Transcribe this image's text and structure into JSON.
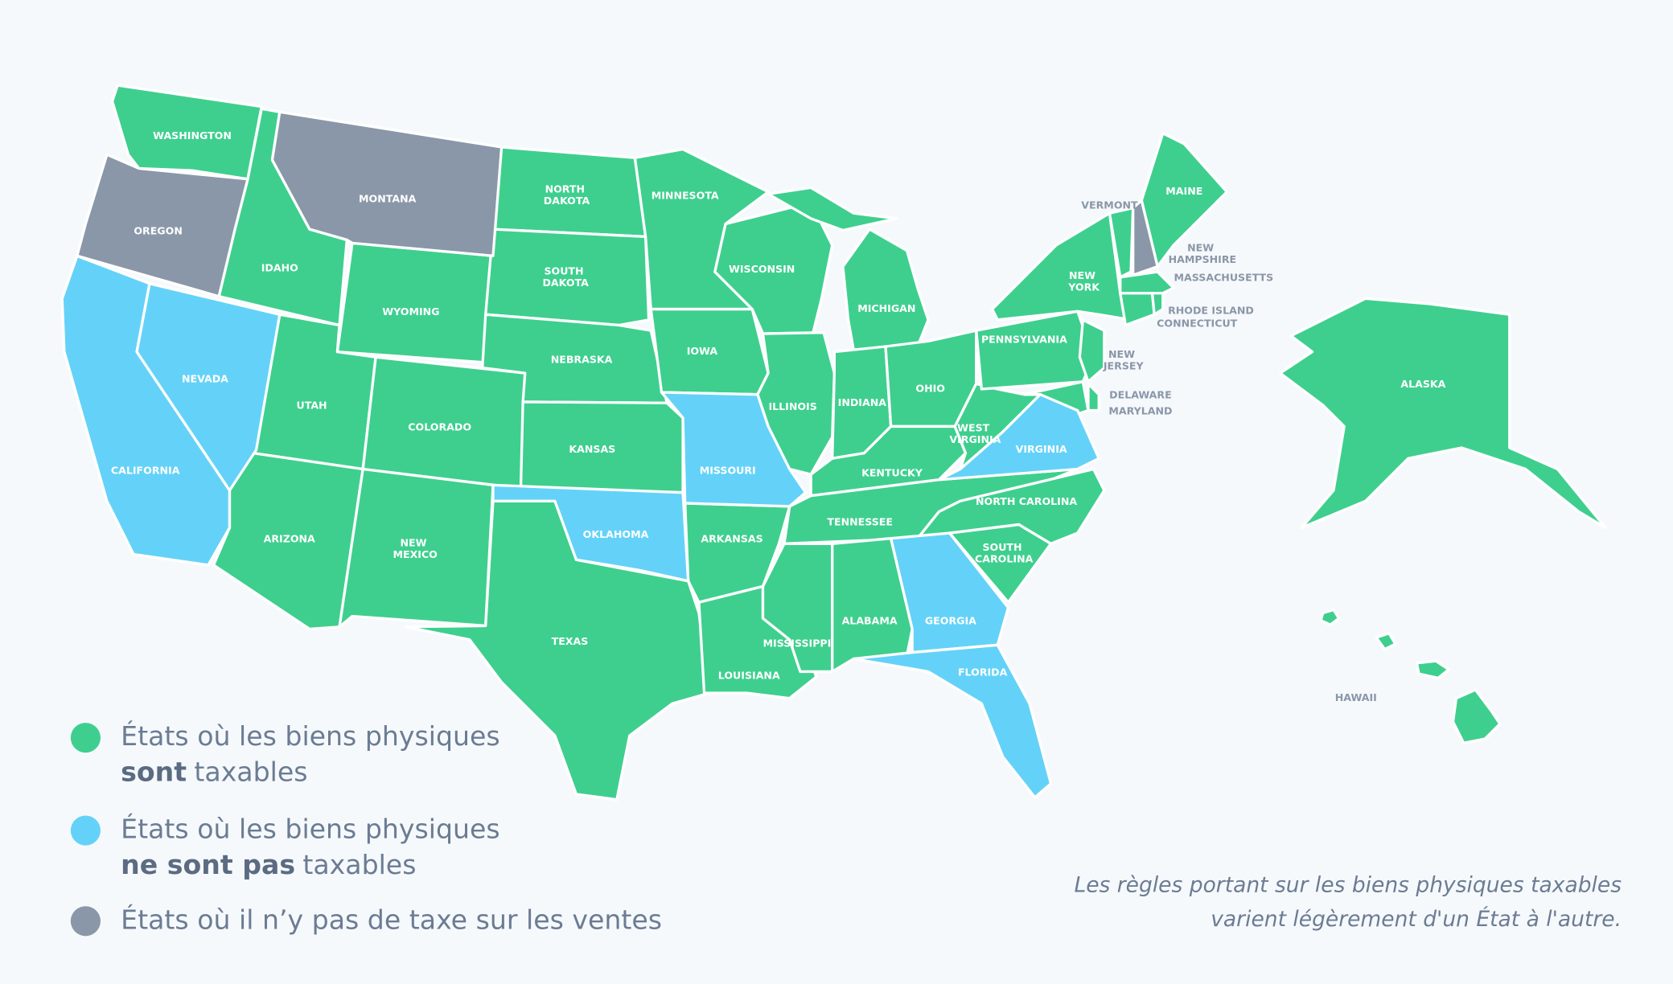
{
  "legend": [
    {
      "color": "#3ecf8e",
      "text": "États où les biens physiques",
      "emphasis": "sont",
      "after": "taxables",
      "states": [
        "WASHINGTON",
        "IDAHO",
        "WYOMING",
        "UTAH",
        "ARIZONA",
        "COLORADO",
        "NEW MEXICO",
        "NORTH DAKOTA",
        "SOUTH DAKOTA",
        "NEBRASKA",
        "KANSAS",
        "TEXAS",
        "MINNESOTA",
        "IOWA",
        "ARKANSAS",
        "LOUISIANA",
        "WISCONSIN",
        "ILLINOIS",
        "MICHIGAN",
        "INDIANA",
        "OHIO",
        "KENTUCKY",
        "TENNESSEE",
        "MISSISSIPPI",
        "ALABAMA",
        "SOUTH CAROLINA",
        "NORTH CAROLINA",
        "WEST VIRGINIA",
        "PENNSYLVANIA",
        "NEW YORK",
        "VERMONT",
        "MAINE",
        "MASSACHUSETTS",
        "CONNECTICUT",
        "RHODE ISLAND",
        "NEW JERSEY",
        "DELAWARE",
        "MARYLAND",
        "ALASKA",
        "HAWAII"
      ]
    },
    {
      "color": "#64d2f8",
      "text": "États où les biens physiques",
      "emphasis": "ne sont pas",
      "after": "taxables",
      "states": [
        "CALIFORNIA",
        "NEVADA",
        "MISSOURI",
        "OKLAHOMA",
        "VIRGINIA",
        "GEORGIA",
        "FLORIDA"
      ]
    },
    {
      "color": "#8a97a8",
      "text": "États où il n’y pas de taxe sur les ventes",
      "states": [
        "OREGON",
        "MONTANA",
        "NEW HAMPSHIRE"
      ]
    }
  ],
  "footnote": [
    "Les règles portant sur les biens physiques taxables",
    "varient légèrement d'un État à l'autre."
  ]
}
